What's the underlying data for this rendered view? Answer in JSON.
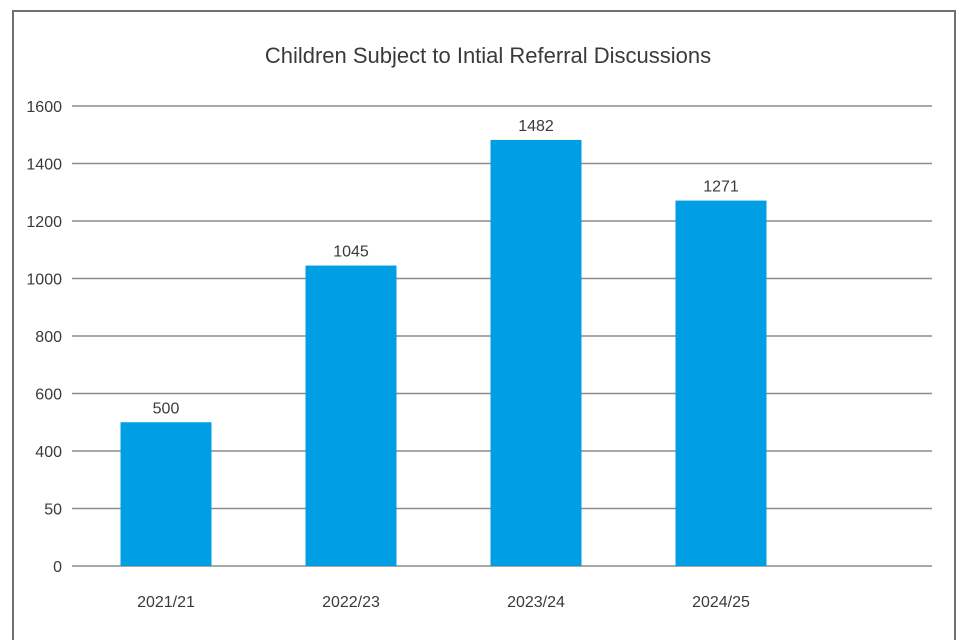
{
  "chart_data": {
    "type": "bar",
    "title": "Children Subject to Intial Referral Discussions",
    "categories": [
      "2021/21",
      "2022/23",
      "2023/24",
      "2024/25"
    ],
    "values": [
      500,
      1045,
      1482,
      1271
    ],
    "data_labels": [
      "500",
      "1045",
      "1482",
      "1271"
    ],
    "y_tick_labels": [
      "0",
      "50",
      "400",
      "600",
      "800",
      "1000",
      "1200",
      "1400",
      "1600"
    ],
    "xlabel": "",
    "ylabel": "",
    "ylim": [
      0,
      1600
    ],
    "grid": true,
    "legend": "none",
    "bar_color": "#009fe3",
    "grid_color": "#8c8c8c"
  }
}
